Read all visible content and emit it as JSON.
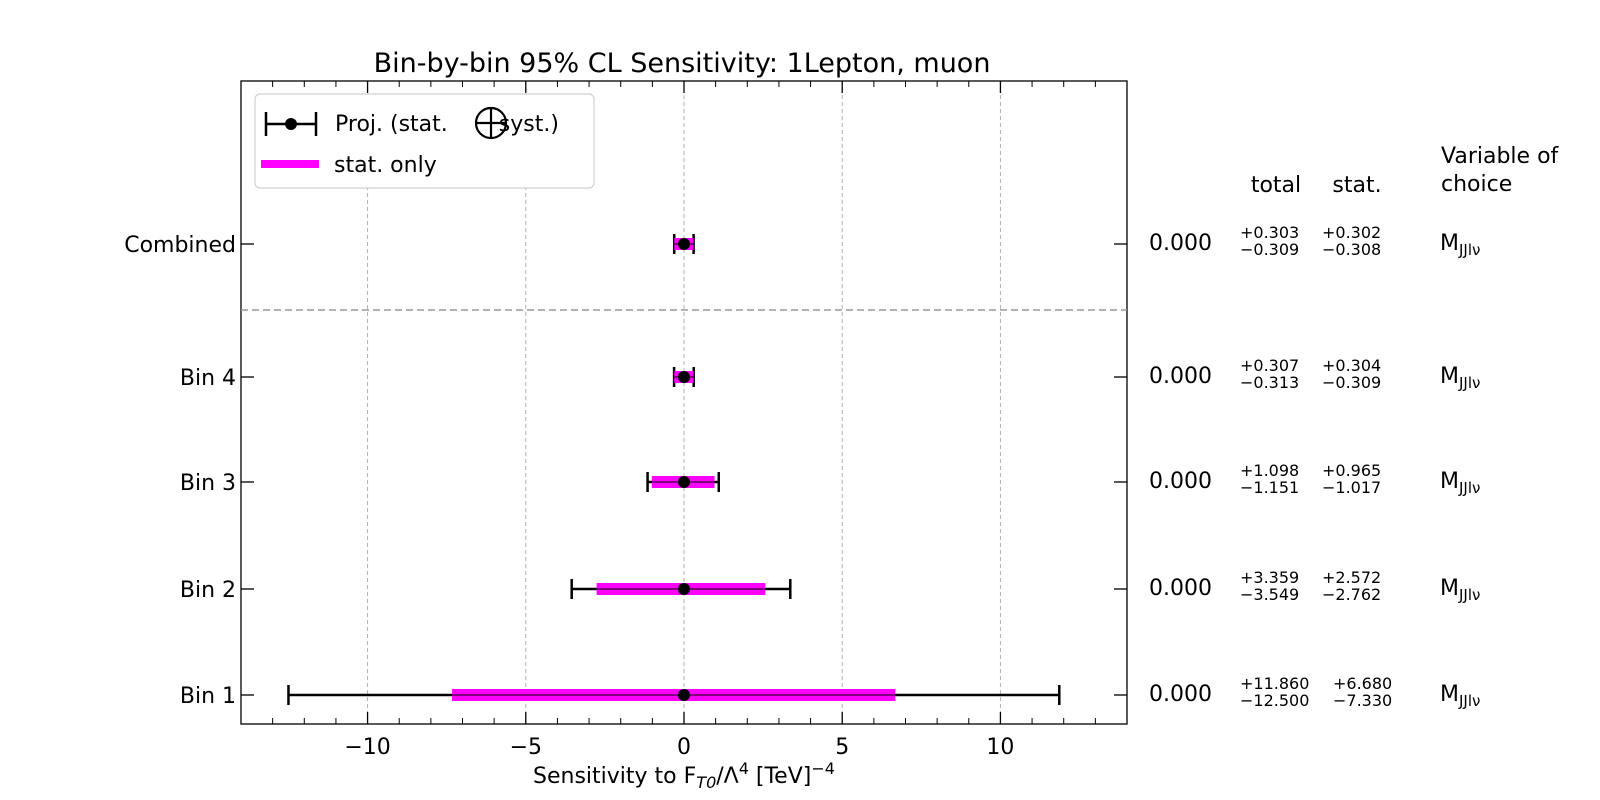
{
  "chart_data": {
    "type": "errorbar",
    "title": "Bin-by-bin 95% CL Sensitivity: 1Lepton, muon",
    "xlabel": {
      "pre": "Sensitivity to F",
      "sub": "T0",
      "mid": "/Λ",
      "sup1": "4",
      "post": " [TeV]",
      "sup2": "−4"
    },
    "xlim": [
      -14,
      14
    ],
    "xticks": [
      -10,
      -5,
      0,
      5,
      10
    ],
    "xtick_labels": [
      "−10",
      "−5",
      "0",
      "5",
      "10"
    ],
    "grid": true,
    "legend": {
      "placement": "upper-left",
      "entries": [
        {
          "label_pre": "Proj. (stat.",
          "label_post": "syst.)",
          "style": "errorbar"
        },
        {
          "label": "stat. only",
          "style": "magenta-band"
        }
      ]
    },
    "table_headers": {
      "total": "total",
      "stat": "stat.",
      "variable": [
        "Variable of",
        "choice"
      ]
    },
    "variable_label": {
      "main": "M",
      "sub": "JJlν"
    },
    "rows": [
      {
        "label": "Combined",
        "center": 0.0,
        "center_label": "0.000",
        "total_up": 0.303,
        "total_down": -0.309,
        "stat_up": 0.302,
        "stat_down": -0.308,
        "total_up_label": "+0.303",
        "total_down_label": "−0.309",
        "stat_up_label": "+0.302",
        "stat_down_label": "−0.308"
      },
      {
        "label": "Bin 4",
        "center": 0.0,
        "center_label": "0.000",
        "total_up": 0.307,
        "total_down": -0.313,
        "stat_up": 0.304,
        "stat_down": -0.309,
        "total_up_label": "+0.307",
        "total_down_label": "−0.313",
        "stat_up_label": "+0.304",
        "stat_down_label": "−0.309"
      },
      {
        "label": "Bin 3",
        "center": 0.0,
        "center_label": "0.000",
        "total_up": 1.098,
        "total_down": -1.151,
        "stat_up": 0.965,
        "stat_down": -1.017,
        "total_up_label": "+1.098",
        "total_down_label": "−1.151",
        "stat_up_label": "+0.965",
        "stat_down_label": "−1.017"
      },
      {
        "label": "Bin 2",
        "center": 0.0,
        "center_label": "0.000",
        "total_up": 3.359,
        "total_down": -3.549,
        "stat_up": 2.572,
        "stat_down": -2.762,
        "total_up_label": "+3.359",
        "total_down_label": "−3.549",
        "stat_up_label": "+2.572",
        "stat_down_label": "−2.762"
      },
      {
        "label": "Bin 1",
        "center": 0.0,
        "center_label": "0.000",
        "total_up": 11.86,
        "total_down": -12.5,
        "stat_up": 6.68,
        "stat_down": -7.33,
        "total_up_label": "+11.860",
        "total_down_label": "−12.500",
        "stat_up_label": "+6.680",
        "stat_down_label": "−7.330"
      }
    ],
    "colors": {
      "stat_band": "#ff00ff",
      "errorbar": "#000000",
      "grid": "#b0b0b0",
      "separator": "#999999"
    }
  }
}
